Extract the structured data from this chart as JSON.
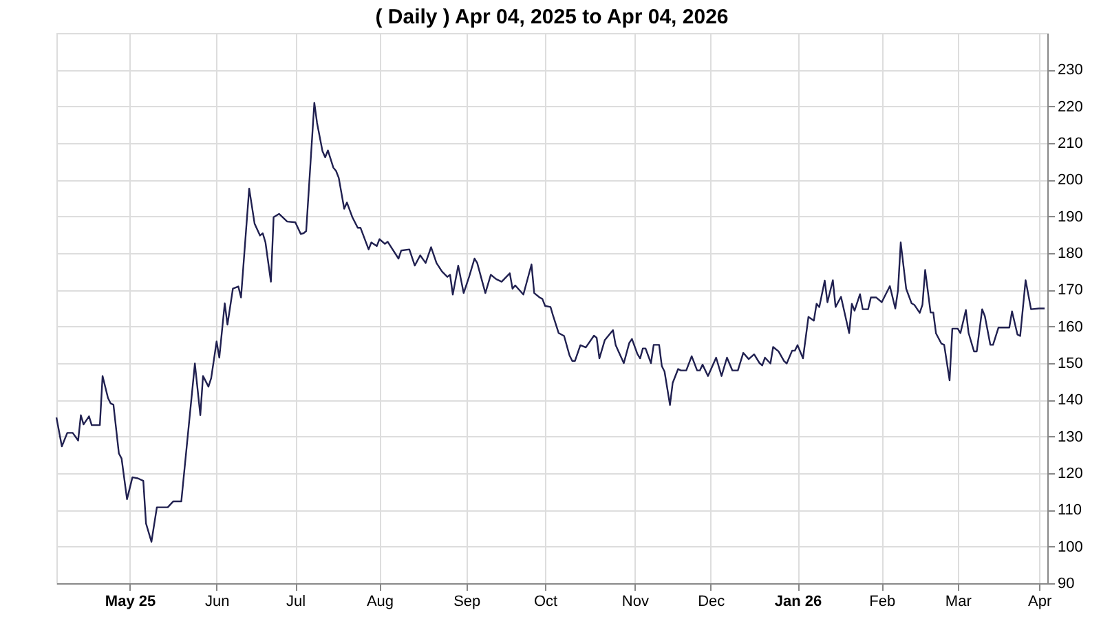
{
  "chart_data": {
    "type": "line",
    "title": "( Daily ) Apr 04, 2025 to Apr 04, 2026",
    "x": [
      "2025-04-04",
      "2025-04-06",
      "2025-04-08",
      "2025-04-10",
      "2025-04-12",
      "2025-04-13",
      "2025-04-14",
      "2025-04-16",
      "2025-04-17",
      "2025-04-20",
      "2025-04-21",
      "2025-04-23",
      "2025-04-24",
      "2025-04-25",
      "2025-04-27",
      "2025-04-28",
      "2025-04-30",
      "2025-05-02",
      "2025-05-04",
      "2025-05-06",
      "2025-05-07",
      "2025-05-09",
      "2025-05-11",
      "2025-05-13",
      "2025-05-15",
      "2025-05-17",
      "2025-05-20",
      "2025-05-25",
      "2025-05-27",
      "2025-05-28",
      "2025-05-30",
      "2025-05-31",
      "2025-06-02",
      "2025-06-03",
      "2025-06-05",
      "2025-06-06",
      "2025-06-08",
      "2025-06-10",
      "2025-06-11",
      "2025-06-14",
      "2025-06-16",
      "2025-06-18",
      "2025-06-19",
      "2025-06-20",
      "2025-06-22",
      "2025-06-23",
      "2025-06-25",
      "2025-06-28",
      "2025-07-01",
      "2025-07-03",
      "2025-07-04",
      "2025-07-05",
      "2025-07-08",
      "2025-07-09",
      "2025-07-11",
      "2025-07-12",
      "2025-07-13",
      "2025-07-15",
      "2025-07-16",
      "2025-07-17",
      "2025-07-19",
      "2025-07-20",
      "2025-07-22",
      "2025-07-24",
      "2025-07-25",
      "2025-07-28",
      "2025-07-29",
      "2025-07-31",
      "2025-08-01",
      "2025-08-03",
      "2025-08-04",
      "2025-08-08",
      "2025-08-09",
      "2025-08-12",
      "2025-08-14",
      "2025-08-16",
      "2025-08-18",
      "2025-08-20",
      "2025-08-22",
      "2025-08-24",
      "2025-08-26",
      "2025-08-27",
      "2025-08-28",
      "2025-08-30",
      "2025-09-01",
      "2025-09-03",
      "2025-09-05",
      "2025-09-06",
      "2025-09-09",
      "2025-09-11",
      "2025-09-13",
      "2025-09-15",
      "2025-09-18",
      "2025-09-19",
      "2025-09-20",
      "2025-09-23",
      "2025-09-26",
      "2025-09-27",
      "2025-09-29",
      "2025-09-30",
      "2025-10-01",
      "2025-10-03",
      "2025-10-04",
      "2025-10-06",
      "2025-10-08",
      "2025-10-10",
      "2025-10-11",
      "2025-10-12",
      "2025-10-14",
      "2025-10-16",
      "2025-10-19",
      "2025-10-20",
      "2025-10-21",
      "2025-10-23",
      "2025-10-26",
      "2025-10-27",
      "2025-10-30",
      "2025-11-01",
      "2025-11-02",
      "2025-11-04",
      "2025-11-05",
      "2025-11-06",
      "2025-11-07",
      "2025-11-09",
      "2025-11-10",
      "2025-11-12",
      "2025-11-13",
      "2025-11-14",
      "2025-11-16",
      "2025-11-17",
      "2025-11-19",
      "2025-11-20",
      "2025-11-22",
      "2025-11-24",
      "2025-11-26",
      "2025-11-27",
      "2025-11-28",
      "2025-11-30",
      "2025-12-03",
      "2025-12-05",
      "2025-12-07",
      "2025-12-09",
      "2025-12-11",
      "2025-12-13",
      "2025-12-15",
      "2025-12-17",
      "2025-12-19",
      "2025-12-20",
      "2025-12-21",
      "2025-12-23",
      "2025-12-24",
      "2025-12-26",
      "2025-12-28",
      "2025-12-29",
      "2025-12-31",
      "2026-01-01",
      "2026-01-02",
      "2026-01-04",
      "2026-01-06",
      "2026-01-08",
      "2026-01-09",
      "2026-01-10",
      "2026-01-12",
      "2026-01-13",
      "2026-01-15",
      "2026-01-16",
      "2026-01-18",
      "2026-01-21",
      "2026-01-22",
      "2026-01-23",
      "2026-01-25",
      "2026-01-26",
      "2026-01-28",
      "2026-01-29",
      "2026-01-31",
      "2026-02-02",
      "2026-02-05",
      "2026-02-07",
      "2026-02-08",
      "2026-02-09",
      "2026-02-11",
      "2026-02-13",
      "2026-02-14",
      "2026-02-16",
      "2026-02-17",
      "2026-02-18",
      "2026-02-20",
      "2026-02-21",
      "2026-02-22",
      "2026-02-24",
      "2026-02-25",
      "2026-02-27",
      "2026-02-28",
      "2026-03-02",
      "2026-03-03",
      "2026-03-05",
      "2026-03-06",
      "2026-03-08",
      "2026-03-09",
      "2026-03-11",
      "2026-03-12",
      "2026-03-14",
      "2026-03-15",
      "2026-03-17",
      "2026-03-21",
      "2026-03-22",
      "2026-03-24",
      "2026-03-25",
      "2026-03-27",
      "2026-03-29",
      "2026-04-01",
      "2026-04-03"
    ],
    "series": [
      {
        "color": "#202050",
        "values": [
          135.2,
          127.3,
          131,
          131,
          128.9,
          135.8,
          133.3,
          135.5,
          133.1,
          133.1,
          146.5,
          140.5,
          139,
          138.7,
          125.4,
          124,
          112.9,
          118.9,
          118.6,
          117.9,
          106.3,
          101.3,
          110.7,
          110.7,
          110.7,
          112.3,
          112.3,
          149.9,
          135.8,
          146.5,
          143.6,
          145.9,
          155.9,
          151.5,
          166.3,
          160.5,
          170.3,
          170.9,
          167.9,
          197.6,
          188,
          184.8,
          185.4,
          182.9,
          172.2,
          189.8,
          190.7,
          188.6,
          188.4,
          185.2,
          185.4,
          186,
          221,
          215.5,
          207.8,
          206.1,
          208,
          203.3,
          202.4,
          200.5,
          192.1,
          193.8,
          189.8,
          186.9,
          186.9,
          181,
          182.9,
          181.9,
          183.8,
          182.5,
          183.1,
          178.5,
          180.7,
          181,
          176.6,
          179.4,
          177.3,
          181.6,
          177.3,
          175,
          173.5,
          174.1,
          168.7,
          176.6,
          169.1,
          173.5,
          178.5,
          177.3,
          169.1,
          174.1,
          172.9,
          172.2,
          174.5,
          170.3,
          171.2,
          168.7,
          176.9,
          169.1,
          167.9,
          167.5,
          165.6,
          165.3,
          162.8,
          158.2,
          157.4,
          152.1,
          150.6,
          150.6,
          154.9,
          154.3,
          157.5,
          156.9,
          151.3,
          156.3,
          159,
          154.9,
          150,
          155.5,
          156.6,
          152.5,
          151.3,
          154,
          154,
          150,
          155,
          155,
          149.2,
          147.7,
          138.6,
          144.6,
          148.4,
          148,
          148,
          151.9,
          148,
          148,
          149.6,
          146.5,
          151.5,
          146.5,
          151.5,
          148,
          148,
          152.8,
          151.1,
          152.4,
          150,
          149.4,
          151.5,
          149.9,
          154.4,
          153.2,
          150.6,
          149.9,
          153.4,
          153.4,
          154.9,
          151.3,
          162.6,
          161.6,
          166.2,
          165.3,
          172.5,
          166.6,
          172.6,
          165.3,
          168.1,
          158.2,
          166.2,
          164.3,
          168.8,
          164.7,
          164.7,
          167.9,
          167.9,
          166.6,
          171,
          164.9,
          169.9,
          182.9,
          170.3,
          166.3,
          165.9,
          163.7,
          165.9,
          175.4,
          163.8,
          163.8,
          158.1,
          155.3,
          155,
          145.3,
          159.4,
          159.4,
          158.2,
          164.5,
          158.2,
          153.2,
          153.2,
          164.7,
          162.8,
          155,
          155,
          159.7,
          159.7,
          164.1,
          157.8,
          157.4,
          172.6,
          164.7,
          164.9,
          164.9
        ]
      }
    ],
    "xlim": [
      "2025-04-04",
      "2026-04-04"
    ],
    "xticks": [
      {
        "value": "2025-05-01",
        "label": "May 25"
      },
      {
        "value": "2025-06-02",
        "label": "Jun"
      },
      {
        "value": "2025-07-01",
        "label": "Jul"
      },
      {
        "value": "2025-08-01",
        "label": "Aug"
      },
      {
        "value": "2025-09-02",
        "label": "Sep"
      },
      {
        "value": "2025-10-01",
        "label": "Oct"
      },
      {
        "value": "2025-11-03",
        "label": "Nov"
      },
      {
        "value": "2025-12-01",
        "label": "Dec"
      },
      {
        "value": "2026-01-02",
        "label": "Jan 26"
      },
      {
        "value": "2026-02-02",
        "label": "Feb"
      },
      {
        "value": "2026-03-02",
        "label": "Mar"
      },
      {
        "value": "2026-04-01",
        "label": "Apr"
      }
    ],
    "ylim": [
      90,
      240
    ],
    "yticks": [
      90,
      100,
      110,
      120,
      130,
      140,
      150,
      160,
      170,
      180,
      190,
      200,
      210,
      220,
      230
    ],
    "grid": true,
    "marker": "none",
    "line_style": "solid"
  }
}
